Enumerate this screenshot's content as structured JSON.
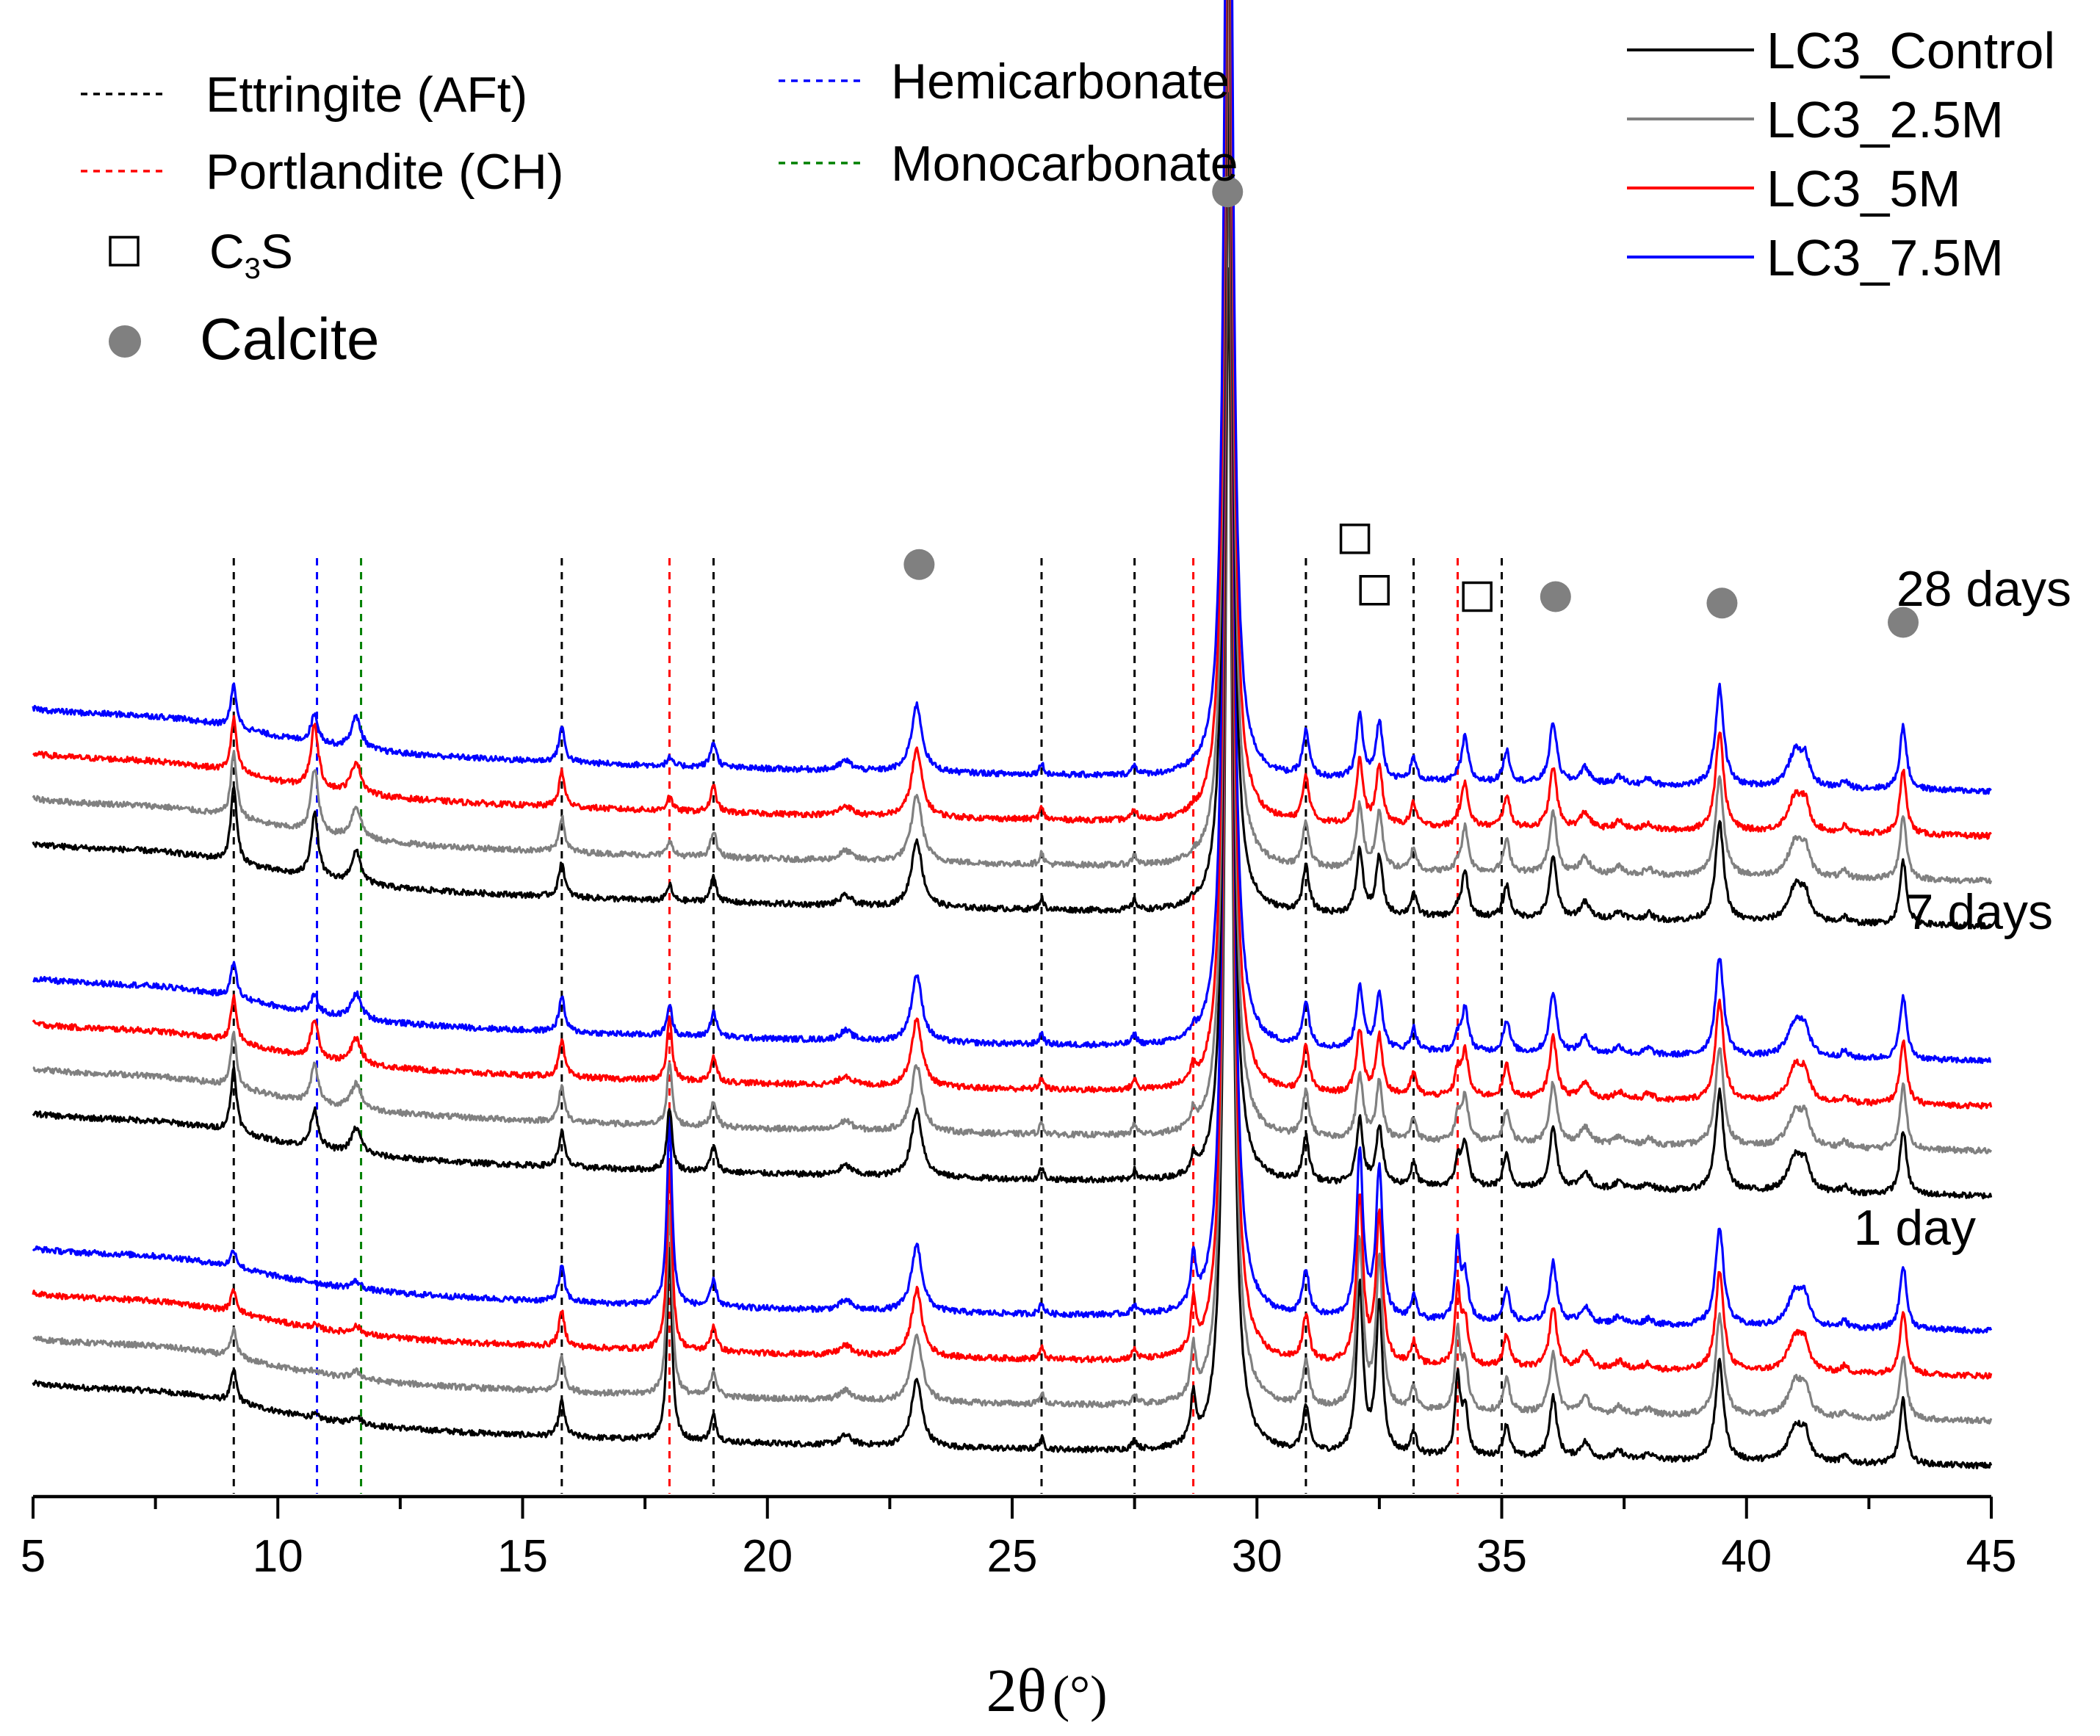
{
  "chart_data": {
    "type": "line",
    "title": "",
    "xlabel": "2θ (°)",
    "xlabel_main": "2θ",
    "xlabel_unit": "(°)",
    "ylabel": "",
    "xlim": [
      5,
      45
    ],
    "x_ticks": [
      5,
      10,
      15,
      20,
      25,
      30,
      35,
      40,
      45
    ],
    "x_tick_labels": [
      "5",
      "10",
      "15",
      "20",
      "25",
      "30",
      "35",
      "40",
      "45"
    ],
    "offset_units": {
      "per_series": 0.7,
      "per_group": 4.2
    },
    "series": [
      {
        "name": "LC3_Control",
        "color": "#000000"
      },
      {
        "name": "LC3_2.5M",
        "color": "#808080"
      },
      {
        "name": "LC3_5M",
        "color": "#ff0000"
      },
      {
        "name": "LC3_7.5M",
        "color": "#0000ff"
      }
    ],
    "groups": [
      {
        "label": "1 day",
        "base": 0.0,
        "ettringite": 0.5,
        "hemi": 0.05,
        "mono": 0.12,
        "ch": 3.0
      },
      {
        "label": "7 days",
        "base": 4.2,
        "ettringite": 1.0,
        "hemi": 0.6,
        "mono": 0.4,
        "ch": 1.0
      },
      {
        "label": "28 days",
        "base": 8.4,
        "ettringite": 1.2,
        "hemi": 1.0,
        "mono": 0.5,
        "ch": 0.25
      }
    ],
    "reference_lines": [
      {
        "phase": "Ettringite (AFt)",
        "color": "#000000",
        "positions": [
          9.1,
          15.8,
          18.9,
          25.6,
          27.5,
          31.0,
          33.2,
          35.0
        ]
      },
      {
        "phase": "Portlandite (CH)",
        "color": "#ff0000",
        "positions": [
          18.0,
          28.7,
          34.1
        ]
      },
      {
        "phase": "Hemicarbonate",
        "color": "#0000ff",
        "positions": [
          10.8
        ]
      },
      {
        "phase": "Monocarbonate",
        "color": "#008000",
        "positions": [
          11.7
        ]
      }
    ],
    "markers": [
      {
        "type": "calcite",
        "x": 23.1,
        "level": 13.9
      },
      {
        "type": "calcite",
        "x": 29.4,
        "level": 19.7
      },
      {
        "type": "calcite",
        "x": 36.1,
        "level": 13.4
      },
      {
        "type": "calcite",
        "x": 39.5,
        "level": 13.3
      },
      {
        "type": "calcite",
        "x": 43.2,
        "level": 13.0
      },
      {
        "type": "c3s",
        "x": 32.0,
        "level": 14.3
      },
      {
        "type": "c3s",
        "x": 32.4,
        "level": 13.5
      },
      {
        "type": "c3s",
        "x": 34.5,
        "level": 13.4
      }
    ],
    "legend_phases": [
      {
        "label": "Ettringite (AFt)",
        "kind": "dash",
        "color": "#000000"
      },
      {
        "label": "Portlandite (CH)",
        "kind": "dash",
        "color": "#ff0000"
      },
      {
        "label": "C3S",
        "label_main": "C",
        "label_sub": "3",
        "label_tail": "S",
        "kind": "square",
        "color": "#000000"
      },
      {
        "label": "Calcite",
        "kind": "circle",
        "color": "#808080"
      },
      {
        "label": "Hemicarbonate",
        "kind": "dash",
        "color": "#0000ff"
      },
      {
        "label": "Monocarbonate",
        "kind": "dash",
        "color": "#008000"
      }
    ],
    "legend_position": "top-right"
  }
}
